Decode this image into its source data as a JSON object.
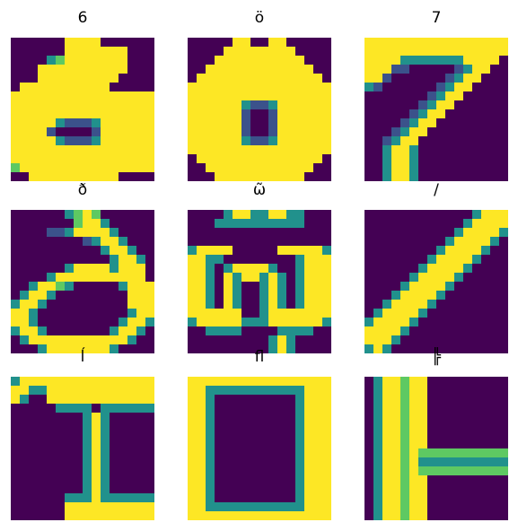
{
  "palette": [
    "#440154",
    "#3b528b",
    "#21918c",
    "#5ec962",
    "#fde725"
  ],
  "panels": [
    {
      "title": "6",
      "grid": [
        "0000004444000000",
        "0000004444444000",
        "0000234444444000",
        "0004444444444000",
        "0004444444440000",
        "0444444444400000",
        "4444444444444444",
        "4444444444444444",
        "4444444444444444",
        "4444421112444444",
        "4444100001444444",
        "4444421112444444",
        "4444444444444444",
        "4444444444444444",
        "3444444444444444",
        "0044444444440000"
      ]
    },
    {
      "title": "ö",
      "grid": [
        "0000044004400000",
        "0000444444440000",
        "0004444444444000",
        "0044444444444400",
        "0444444444444440",
        "4444444444444444",
        "4444444444444444",
        "4444442112444444",
        "4444441001444444",
        "4444441001444444",
        "4444441001444444",
        "4444442112444444",
        "4444444444444444",
        "0444444444444440",
        "0044444444444400",
        "0004444444444000"
      ]
    },
    {
      "title": "7",
      "grid": [
        "4444444444444444",
        "4444444444444444",
        "4444222222244440",
        "4441100000124400",
        "4410000001244000",
        "2100000012440000",
        "0000000124400000",
        "0000001244000000",
        "0000012440000000",
        "0000124400000000",
        "0001244000000000",
        "0012440000000000",
        "0024420000000000",
        "0024420000000000",
        "0024420000000000",
        "0024420000000000"
      ]
    },
    {
      "title": "ð",
      "grid": [
        "0000002343000000",
        "0000000344200000",
        "0000112444420000",
        "0000000012442000",
        "0000000000244200",
        "0000000000024420",
        "0000002444424440",
        "0000244444444440",
        "0024432000002444",
        "0244200000000444",
        "2442000000000444",
        "4420000000000244",
        "4420000000002442",
        "2442000000024420",
        "0244444444444200",
        "0002444444420000"
      ]
    },
    {
      "title": "ω̃",
      "grid": [
        "0000244224422000",
        "0002222222222000",
        "0000000000000000",
        "0000000000000000",
        "2444400000444442",
        "4422000000002444",
        "4420244442002444",
        "4420424424202444",
        "4420420024202444",
        "4420420024202444",
        "4420420024202444",
        "4444440024444444",
        "2444442224444442",
        "0022220000222200",
        "0000000002420000",
        "0000000002420000"
      ]
    },
    {
      "title": "/",
      "grid": [
        "0000000000002444",
        "0000000000024444",
        "0000000000244442",
        "0000000002444420",
        "0000000024444200",
        "0000000244442000",
        "0000002444420000",
        "0000024444200000",
        "0000244442000000",
        "0002444420000000",
        "0024444200000000",
        "0244442000000000",
        "2444420000000000",
        "4444200000000000",
        "4442000000000000",
        "2420000000000000"
      ]
    },
    {
      "title": "ĺ",
      "grid": [
        "2444444444444444",
        "4422444444444444",
        "4200444444444444",
        "0000022220222222",
        "0000000024200000",
        "0000000024200000",
        "0000000024200000",
        "0000000024200000",
        "0000000024200000",
        "0000000024200000",
        "0000000024200000",
        "0000000024200000",
        "0000000024200000",
        "0000002224222222",
        "0000004444444444",
        "0000004444444444"
      ]
    },
    {
      "title": "ﬂ",
      "grid": [
        "4444444444444444",
        "4422222222222444",
        "4420000000002444",
        "4420000000002444",
        "4420000000002444",
        "4420000000002444",
        "4420000000002444",
        "4420000000002444",
        "4420000000002444",
        "4420000000002444",
        "4420000000002444",
        "4420000000002444",
        "4420000000002444",
        "4420000000002444",
        "4422222222222444",
        "4444444444444444"
      ]
    },
    {
      "title": "╠",
      "grid": [
        "0244344000000000",
        "0244344000000000",
        "0244344000000000",
        "0244344000000000",
        "0244344000000000",
        "0244344000000000",
        "0244344000000000",
        "0244344000000000",
        "0244343333333333",
        "0244342222222222",
        "0244343333333333",
        "0244344000000000",
        "0244344000000000",
        "0244344000000000",
        "0244344000000000",
        "0244344000000000"
      ]
    }
  ]
}
